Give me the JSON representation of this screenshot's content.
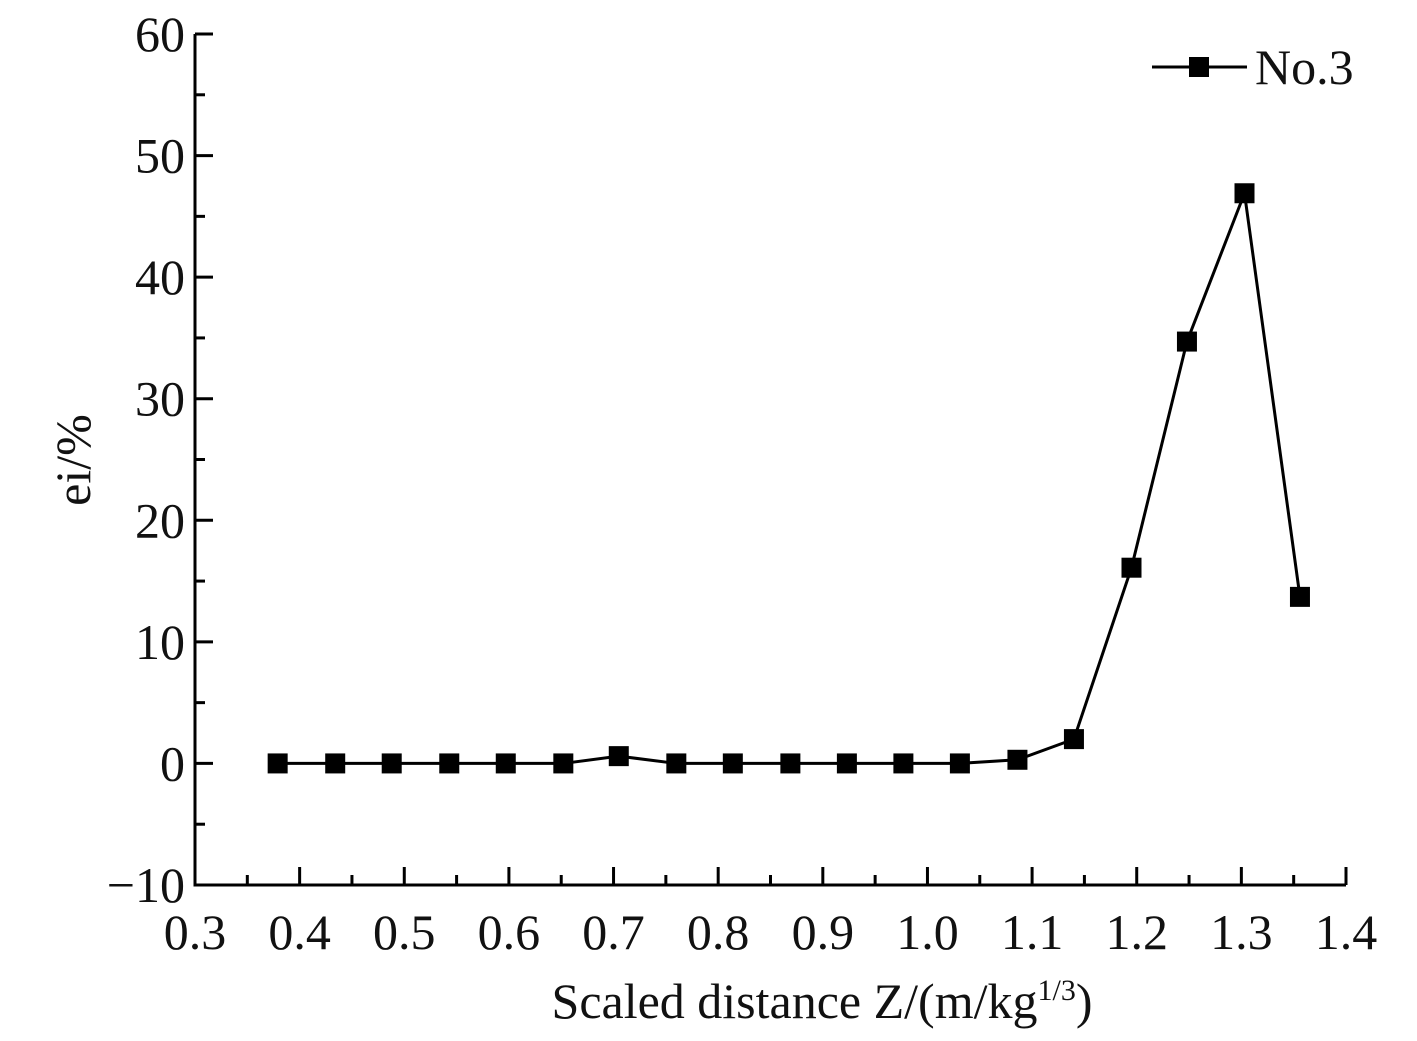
{
  "chart_data": {
    "type": "line",
    "x_label": "Scaled distance Z/(m/kg",
    "x_label_sup": "1/3",
    "x_label_end": ")",
    "y_label": "ei/%",
    "x": [
      0.379,
      0.434,
      0.488,
      0.543,
      0.597,
      0.652,
      0.705,
      0.76,
      0.814,
      0.869,
      0.923,
      0.977,
      1.031,
      1.086,
      1.14,
      1.195,
      1.248,
      1.303,
      1.356
    ],
    "series": [
      {
        "name": "No.3",
        "color": "#000000",
        "values": [
          0,
          0,
          0,
          0,
          0,
          0,
          0.6,
          0,
          0,
          0,
          0,
          0,
          0,
          0.3,
          2.0,
          16.1,
          34.7,
          46.9,
          13.7
        ]
      }
    ],
    "xlim": [
      0.3,
      1.4
    ],
    "xticks": [
      0.3,
      0.4,
      0.5,
      0.6,
      0.7,
      0.8,
      0.9,
      {
        "value": 1,
        "label": "1.0"
      },
      1.1,
      1.2,
      1.3,
      1.4
    ],
    "ylim": [
      -10,
      60
    ],
    "yticks": [
      {
        "value": -10,
        "label": "−10"
      },
      0,
      10,
      20,
      30,
      40,
      50,
      60
    ],
    "legend": "upper right",
    "grid": false
  }
}
